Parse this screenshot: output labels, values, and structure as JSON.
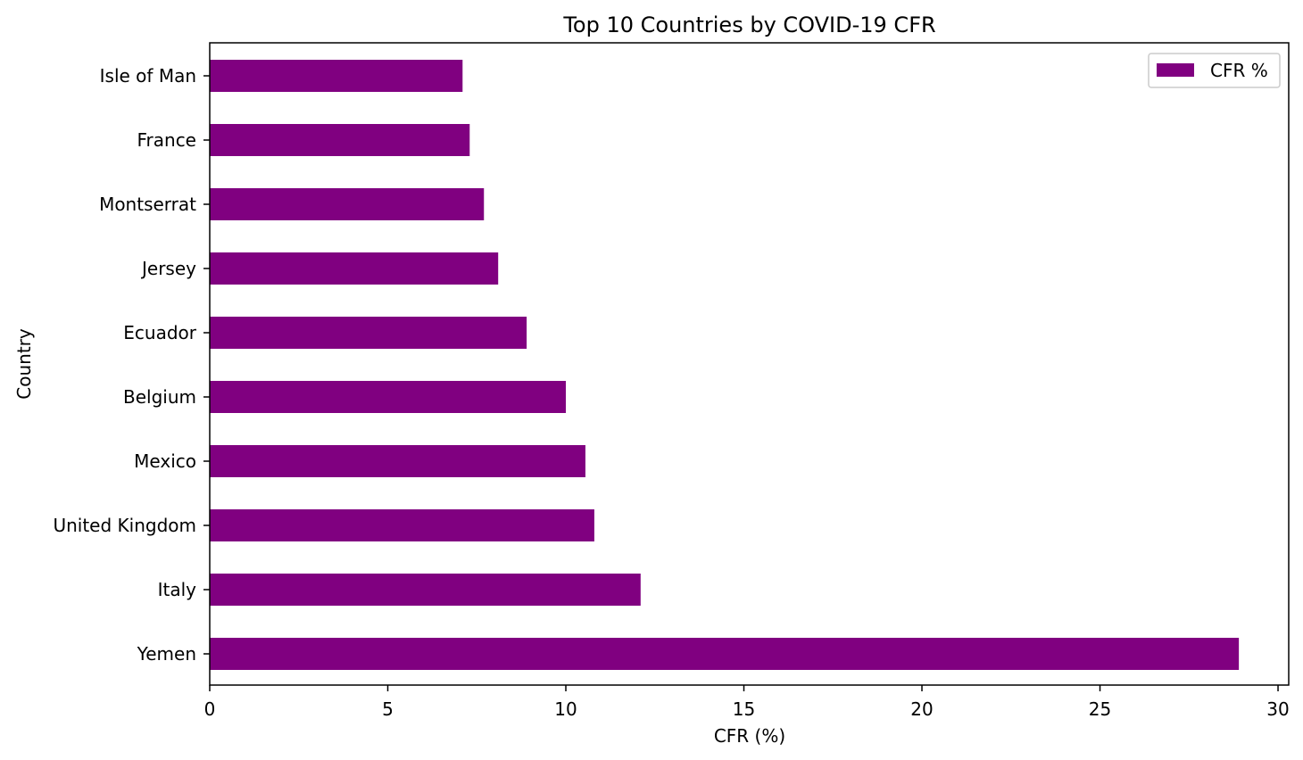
{
  "chart_data": {
    "type": "bar",
    "orientation": "horizontal",
    "title": "Top 10 Countries by COVID-19 CFR",
    "xlabel": "CFR (%)",
    "ylabel": "Country",
    "categories": [
      "Yemen",
      "Italy",
      "United Kingdom",
      "Mexico",
      "Belgium",
      "Ecuador",
      "Jersey",
      "Montserrat",
      "France",
      "Isle of Man"
    ],
    "series": [
      {
        "name": "CFR %",
        "values": [
          28.9,
          12.1,
          10.8,
          10.55,
          10.0,
          8.9,
          8.1,
          7.7,
          7.3,
          7.1
        ],
        "color": "#800080"
      }
    ],
    "xlim": [
      0,
      30.3
    ],
    "xticks": [
      0,
      5,
      10,
      15,
      20,
      25,
      30
    ],
    "grid": false,
    "legend_position": "upper right"
  }
}
